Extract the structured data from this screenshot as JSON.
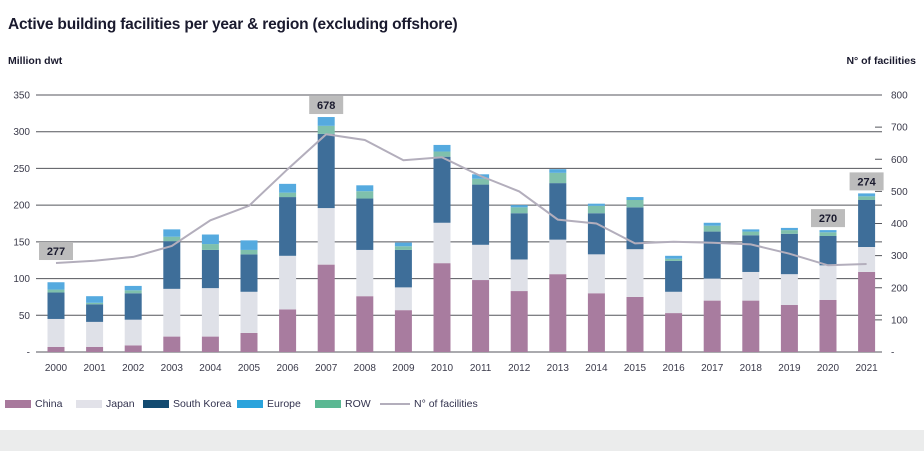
{
  "header": {
    "title": "Active building facilities per year & region (excluding offshore)",
    "left_axis_label": "Million dwt",
    "right_axis_label": "N° of facilities"
  },
  "colors": {
    "title": "#1a1a2e",
    "grid": "#55565c",
    "tick_label": "#3a3a4a",
    "x_label": "#3a3a4a",
    "annotation_bg": "#bcbcbc",
    "annotation_text": "#1a1a2e",
    "line": "#b3aebc",
    "footer_band": "#ebecec"
  },
  "legend": {
    "items": [
      {
        "label": "China",
        "color": "#a8799c",
        "type": "box"
      },
      {
        "label": "Japan",
        "color": "#e2e2e9",
        "type": "box"
      },
      {
        "label": "South Korea",
        "color": "#124a70",
        "type": "box"
      },
      {
        "label": "Europe",
        "color": "#2aa3dc",
        "type": "box"
      },
      {
        "label": "ROW",
        "color": "#5bb893",
        "type": "box"
      },
      {
        "label": "N° of facilities",
        "color": "#b3aebc",
        "type": "line"
      }
    ]
  },
  "chart_data": {
    "type": "bar",
    "stacked": true,
    "title": "Active building facilities per year & region (excluding offshore)",
    "xlabel": "",
    "ylabel_left": "Million dwt",
    "ylabel_right": "N° of facilities",
    "ylim_left": [
      0,
      350
    ],
    "ylim_right": [
      0,
      800
    ],
    "grid": true,
    "legend_position": "bottom",
    "categories": [
      "2000",
      "2001",
      "2002",
      "2003",
      "2004",
      "2005",
      "2006",
      "2007",
      "2008",
      "2009",
      "2010",
      "2011",
      "2012",
      "2013",
      "2014",
      "2015",
      "2016",
      "2017",
      "2018",
      "2019",
      "2020",
      "2021"
    ],
    "y_left_ticks": [
      "350",
      "300",
      "250",
      "200",
      "150",
      "100",
      "50",
      "-"
    ],
    "y_right_ticks": [
      "800",
      "700",
      "600",
      "500",
      "400",
      "300",
      "200",
      "100",
      "-"
    ],
    "stack_order": [
      "China",
      "Japan",
      "South Korea",
      "ROW",
      "Europe"
    ],
    "series": [
      {
        "name": "China",
        "color": "#a87c9f",
        "values": [
          7,
          7,
          9,
          21,
          21,
          26,
          58,
          119,
          76,
          57,
          121,
          98,
          83,
          106,
          80,
          75,
          53,
          70,
          70,
          64,
          71,
          109
        ]
      },
      {
        "name": "Japan",
        "color": "#dfe1e8",
        "values": [
          38,
          34,
          35,
          65,
          66,
          56,
          73,
          77,
          63,
          31,
          55,
          48,
          43,
          47,
          53,
          65,
          29,
          30,
          39,
          42,
          47,
          34
        ]
      },
      {
        "name": "South Korea",
        "color": "#3e6e99",
        "values": [
          36,
          24,
          36,
          65,
          52,
          51,
          80,
          101,
          70,
          51,
          90,
          82,
          63,
          77,
          56,
          57,
          42,
          64,
          50,
          55,
          40,
          64
        ]
      },
      {
        "name": "Europe",
        "color": "#55aadf",
        "values": [
          10,
          9,
          6,
          10,
          13,
          13,
          12,
          12,
          8,
          5,
          9,
          6,
          3,
          5,
          3,
          4,
          4,
          4,
          3,
          3,
          3,
          4
        ]
      },
      {
        "name": "ROW",
        "color": "#7fc0ac",
        "values": [
          4,
          2,
          4,
          6,
          8,
          6,
          6,
          11,
          10,
          5,
          7,
          8,
          8,
          14,
          10,
          10,
          3,
          8,
          5,
          5,
          5,
          5
        ]
      }
    ],
    "line_series": {
      "name": "N° of facilities",
      "color": "#b3aebc",
      "axis": "right",
      "values": [
        277,
        284,
        296,
        330,
        410,
        455,
        569,
        678,
        660,
        597,
        606,
        548,
        500,
        412,
        400,
        338,
        343,
        340,
        335,
        306,
        270,
        274
      ]
    },
    "annotations": [
      {
        "year": "2000",
        "label": "277"
      },
      {
        "year": "2007",
        "label": "678"
      },
      {
        "year": "2020",
        "label": "270"
      },
      {
        "year": "2021",
        "label": "274"
      }
    ]
  }
}
